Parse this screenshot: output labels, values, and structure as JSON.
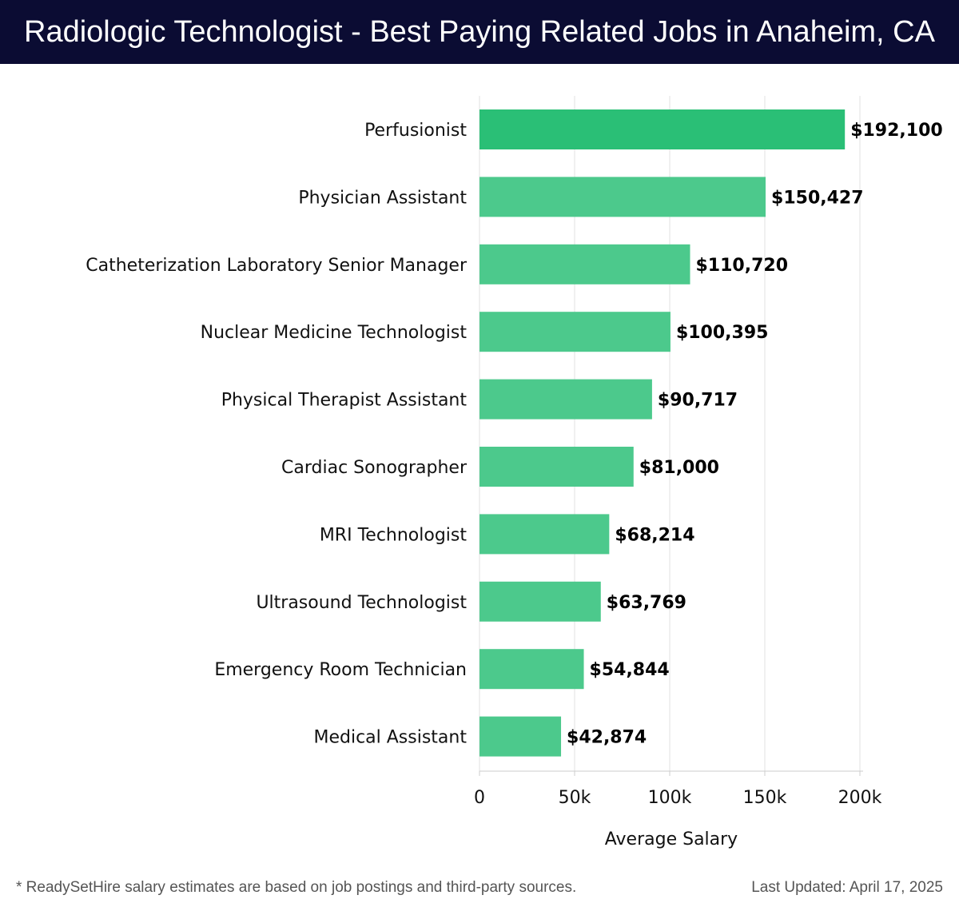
{
  "header": {
    "title": "Radiologic Technologist - Best Paying Related Jobs in Anaheim, CA"
  },
  "chart_data": {
    "type": "bar",
    "orientation": "horizontal",
    "categories": [
      "Perfusionist",
      "Physician Assistant",
      "Catheterization Laboratory Senior Manager",
      "Nuclear Medicine Technologist",
      "Physical Therapist Assistant",
      "Cardiac Sonographer",
      "MRI Technologist",
      "Ultrasound Technologist",
      "Emergency Room Technician",
      "Medical Assistant"
    ],
    "values": [
      192100,
      150427,
      110720,
      100395,
      90717,
      81000,
      68214,
      63769,
      54844,
      42874
    ],
    "value_labels": [
      "$192,100",
      "$150,427",
      "$110,720",
      "$100,395",
      "$90,717",
      "$81,000",
      "$68,214",
      "$63,769",
      "$54,844",
      "$42,874"
    ],
    "xlabel": "Average Salary",
    "ylabel": "",
    "xlim": [
      0,
      200000
    ],
    "x_ticks": [
      0,
      50000,
      100000,
      150000,
      200000
    ],
    "x_tick_labels": [
      "0",
      "50k",
      "100k",
      "150k",
      "200k"
    ],
    "grid": "vertical",
    "colors": {
      "top_bar": "#2abf76",
      "bars": "#4cc98c",
      "grid": "#e2e2e2",
      "axis": "#cccccc"
    }
  },
  "footer": {
    "note": "* ReadySetHire salary estimates are based on job postings and third-party sources.",
    "updated": "Last Updated: April 17, 2025"
  }
}
